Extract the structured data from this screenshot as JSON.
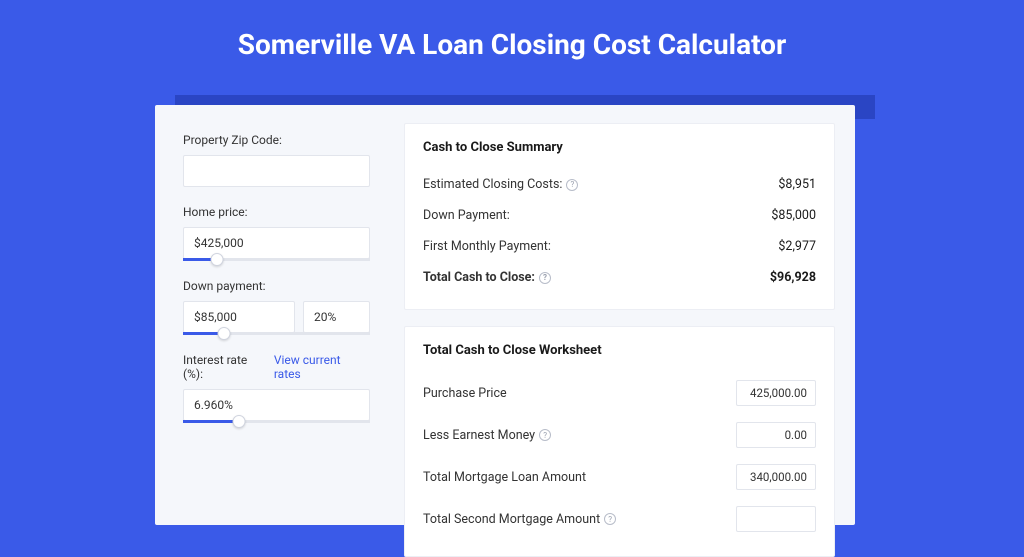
{
  "title": "Somerville VA Loan Closing Cost Calculator",
  "colors": {
    "brand": "#3a5ae8"
  },
  "left": {
    "zip": {
      "label": "Property Zip Code:",
      "value": ""
    },
    "home_price": {
      "label": "Home price:",
      "value": "$425,000",
      "slider_fill_pct": 18
    },
    "down_payment": {
      "label": "Down payment:",
      "value": "$85,000",
      "pct": "20%",
      "slider_fill_pct": 22
    },
    "interest": {
      "label": "Interest rate (%):",
      "link": "View current rates",
      "value": "6.960%",
      "slider_fill_pct": 30
    }
  },
  "summary": {
    "heading": "Cash to Close Summary",
    "rows": [
      {
        "label": "Estimated Closing Costs:",
        "help": true,
        "value": "$8,951"
      },
      {
        "label": "Down Payment:",
        "help": false,
        "value": "$85,000"
      },
      {
        "label": "First Monthly Payment:",
        "help": false,
        "value": "$2,977"
      }
    ],
    "total": {
      "label": "Total Cash to Close:",
      "help": true,
      "value": "$96,928"
    }
  },
  "worksheet": {
    "heading": "Total Cash to Close Worksheet",
    "rows": [
      {
        "label": "Purchase Price",
        "help": false,
        "value": "425,000.00"
      },
      {
        "label": "Less Earnest Money",
        "help": true,
        "value": "0.00"
      },
      {
        "label": "Total Mortgage Loan Amount",
        "help": false,
        "value": "340,000.00"
      },
      {
        "label": "Total Second Mortgage Amount",
        "help": true,
        "value": ""
      }
    ]
  }
}
